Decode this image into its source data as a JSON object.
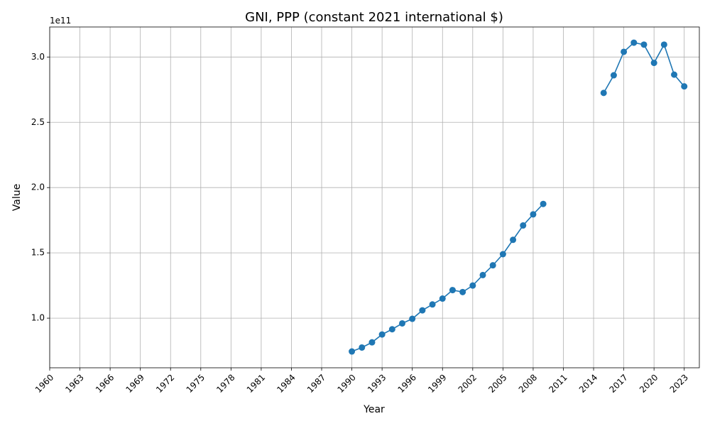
{
  "chart_data": {
    "type": "line",
    "title": "GNI, PPP (constant 2021 international $)",
    "xlabel": "Year",
    "ylabel": "Value",
    "offset_text": "1e11",
    "xlim": [
      1960,
      2024.5
    ],
    "ylim": [
      62000000000.0,
      323000000000.0
    ],
    "grid": true,
    "x_ticks": [
      1960,
      1963,
      1966,
      1969,
      1972,
      1975,
      1978,
      1981,
      1984,
      1987,
      1990,
      1993,
      1996,
      1999,
      2002,
      2005,
      2008,
      2011,
      2014,
      2017,
      2020,
      2023
    ],
    "y_ticks": [
      100000000000.0,
      150000000000.0,
      200000000000.0,
      250000000000.0,
      300000000000.0
    ],
    "y_tick_labels": [
      "1.0",
      "1.5",
      "2.0",
      "2.5",
      "3.0"
    ],
    "series": [
      {
        "color": "#1f77b4",
        "segments": [
          {
            "x": [
              1990,
              1991,
              1992,
              1993,
              1994,
              1995,
              1996,
              1997,
              1998,
              1999,
              2000,
              2001,
              2002,
              2003,
              2004,
              2005,
              2006,
              2007,
              2008,
              2009
            ],
            "y": [
              74500000000.0,
              77500000000.0,
              81500000000.0,
              87500000000.0,
              91500000000.0,
              96000000000.0,
              99500000000.0,
              106000000000.0,
              110500000000.0,
              115000000000.0,
              121500000000.0,
              120000000000.0,
              125000000000.0,
              133000000000.0,
              140500000000.0,
              149000000000.0,
              160000000000.0,
              171000000000.0,
              179500000000.0,
              187500000000.0
            ]
          },
          {
            "x": [
              2015,
              2016,
              2017,
              2018,
              2019,
              2020,
              2021,
              2022,
              2023
            ],
            "y": [
              272500000000.0,
              286000000000.0,
              304000000000.0,
              311000000000.0,
              309500000000.0,
              295500000000.0,
              309500000000.0,
              286500000000.0,
              277500000000.0
            ]
          }
        ]
      }
    ]
  }
}
